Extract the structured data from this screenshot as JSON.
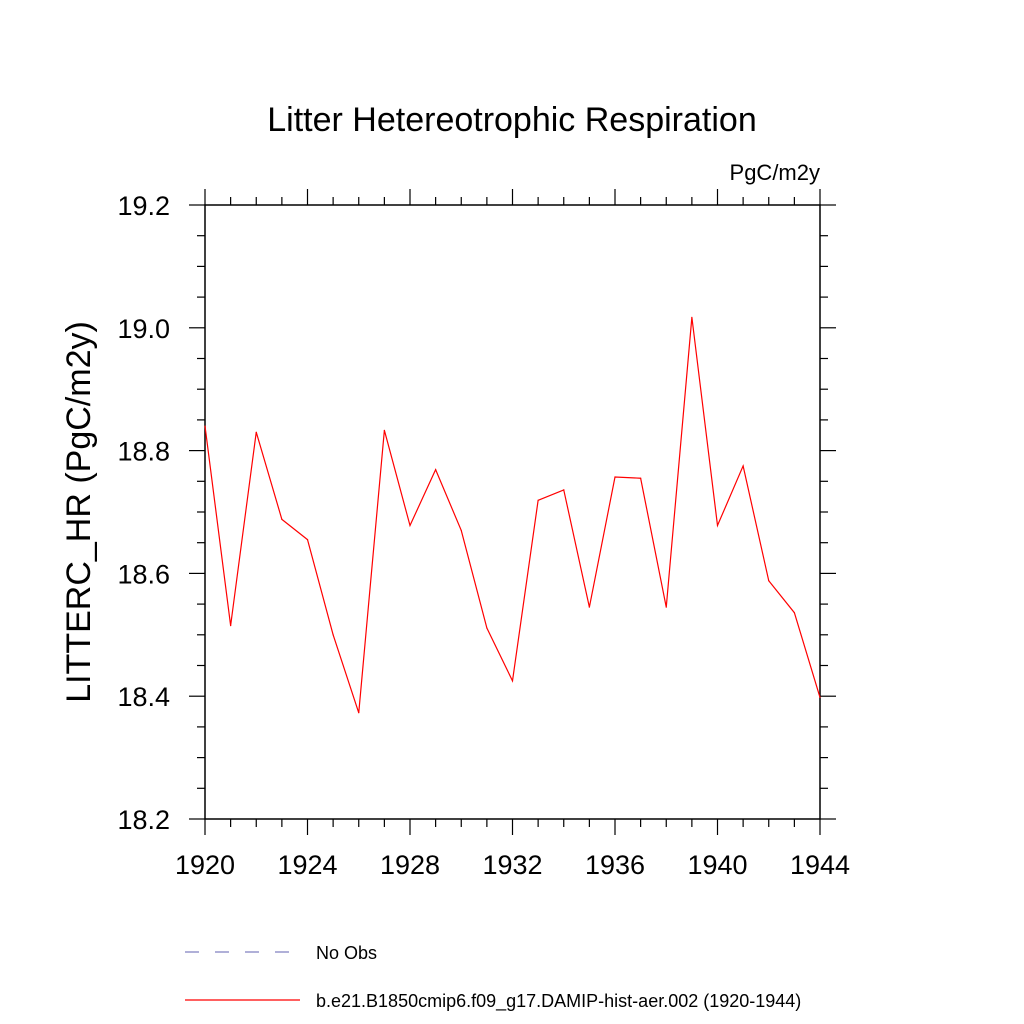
{
  "chart_data": {
    "type": "line",
    "title": "Litter Hetereotrophic Respiration",
    "units": "PgC/m2y",
    "xlabel": "",
    "ylabel": "LITTERC_HR  (PgC/m2y)",
    "xlim": [
      1920,
      1944
    ],
    "ylim": [
      18.2,
      19.2
    ],
    "x_ticks": [
      "1920",
      "1924",
      "1928",
      "1932",
      "1936",
      "1940",
      "1944"
    ],
    "y_ticks": [
      "18.2",
      "18.4",
      "18.6",
      "18.8",
      "19.0",
      "19.2"
    ],
    "x": [
      1920,
      1921,
      1922,
      1923,
      1924,
      1925,
      1926,
      1927,
      1928,
      1929,
      1930,
      1931,
      1932,
      1933,
      1934,
      1935,
      1936,
      1937,
      1938,
      1939,
      1940,
      1941,
      1942,
      1943,
      1944
    ],
    "series": [
      {
        "name": "b.e21.B1850cmip6.f09_g17.DAMIP-hist-aer.002 (1920-1944)",
        "color": "#ff0000",
        "values": [
          18.84,
          18.515,
          18.83,
          18.688,
          18.655,
          18.5,
          18.373,
          18.833,
          18.678,
          18.769,
          18.67,
          18.511,
          18.425,
          18.719,
          18.736,
          18.545,
          18.757,
          18.755,
          18.545,
          19.017,
          18.678,
          18.775,
          18.588,
          18.536,
          18.398
        ]
      }
    ],
    "legend": [
      {
        "label": "No Obs",
        "style": "dashed",
        "color": "#8080c0"
      },
      {
        "label": "b.e21.B1850cmip6.f09_g17.DAMIP-hist-aer.002 (1920-1944)",
        "style": "solid",
        "color": "#ff0000"
      }
    ],
    "legend_position": "bottom",
    "grid": false
  }
}
